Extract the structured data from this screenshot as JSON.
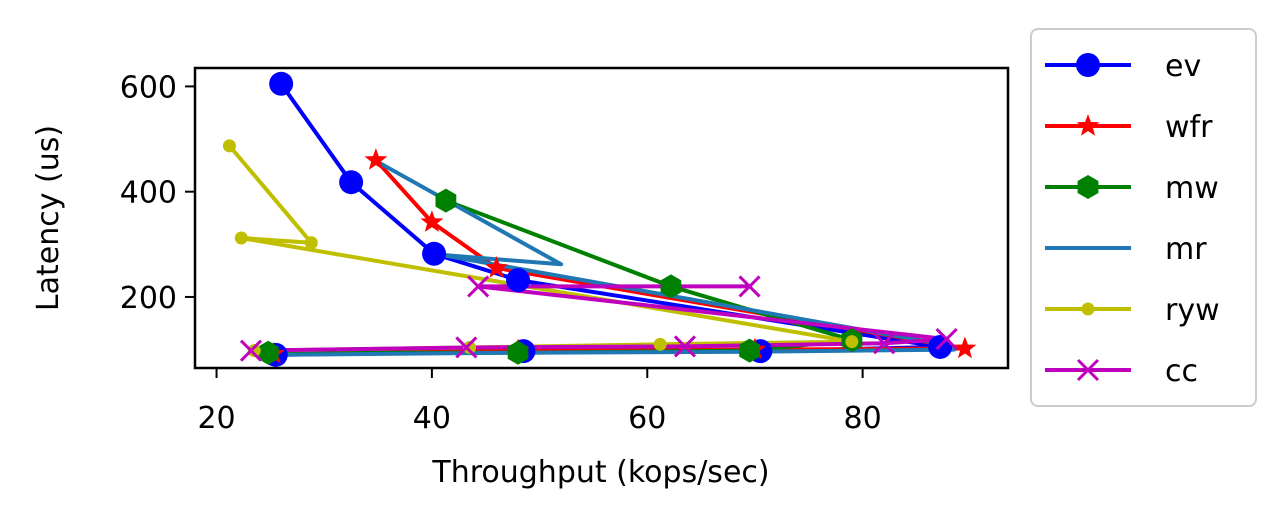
{
  "chart_data": {
    "type": "line",
    "title": "",
    "xlabel": "Throughput (kops/sec)",
    "ylabel": "Latency (us)",
    "xlim": [
      18,
      93.5
    ],
    "ylim": [
      65,
      635
    ],
    "xticks": [
      20,
      40,
      60,
      80
    ],
    "yticks": [
      200,
      400,
      600
    ],
    "grid": false,
    "legend_position": "outside-right",
    "series": [
      {
        "name": "ev",
        "color": "#0000ff",
        "marker": "circle",
        "points": [
          [
            26,
            605
          ],
          [
            32.5,
            418
          ],
          [
            40.2,
            282
          ],
          [
            48,
            232
          ],
          [
            87.2,
            105
          ],
          [
            70.5,
            97
          ],
          [
            48.5,
            97
          ],
          [
            25.5,
            90
          ]
        ]
      },
      {
        "name": "wfr",
        "color": "#ff0000",
        "marker": "star",
        "points": [
          [
            34.8,
            460
          ],
          [
            40,
            342
          ],
          [
            46,
            255
          ],
          [
            89.5,
            102
          ],
          [
            70,
            100
          ],
          [
            48,
            98
          ],
          [
            25.3,
            92
          ]
        ]
      },
      {
        "name": "mw",
        "color": "#008000",
        "marker": "hexagon",
        "points": [
          [
            41.3,
            383
          ],
          [
            62.2,
            220
          ],
          [
            79,
            118
          ],
          [
            69.5,
            98
          ],
          [
            48,
            94
          ],
          [
            24.8,
            94
          ]
        ]
      },
      {
        "name": "mr",
        "color": "#1f77b4",
        "marker": "none",
        "points": [
          [
            34.5,
            462
          ],
          [
            52,
            262
          ],
          [
            40.8,
            280
          ],
          [
            87.5,
            110
          ],
          [
            88.5,
            100
          ],
          [
            70,
            96
          ],
          [
            48,
            94
          ],
          [
            25.2,
            90
          ]
        ]
      },
      {
        "name": "ryw",
        "color": "#bfbf00",
        "marker": "small-circle",
        "points": [
          [
            21.2,
            487
          ],
          [
            28.8,
            303
          ],
          [
            22.3,
            312
          ],
          [
            79,
            115
          ],
          [
            61.2,
            110
          ],
          [
            43.5,
            104
          ],
          [
            23.5,
            98
          ]
        ]
      },
      {
        "name": "cc",
        "color": "#bf00bf",
        "marker": "x",
        "points": [
          [
            69.5,
            220
          ],
          [
            44.3,
            220
          ],
          [
            87.8,
            120
          ],
          [
            82,
            112
          ],
          [
            63.5,
            106
          ],
          [
            43.2,
            104
          ],
          [
            23.2,
            98
          ]
        ]
      }
    ]
  }
}
